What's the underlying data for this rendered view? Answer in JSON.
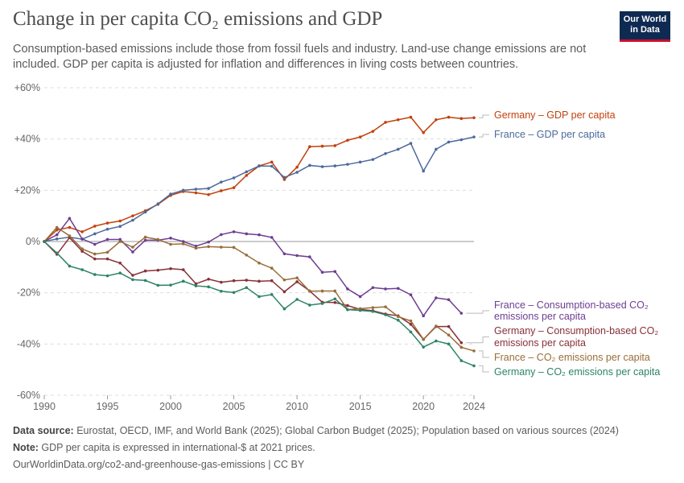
{
  "header": {
    "title": "Change in per capita CO₂ emissions and GDP",
    "subtitle": "Consumption-based emissions include those from fossil fuels and industry. Land-use change emissions are not included. GDP per capita is adjusted for inflation and differences in living costs between countries.",
    "logo": "Our World in Data"
  },
  "footer": {
    "source_label": "Data source:",
    "source": " Eurostat, OECD, IMF, and World Bank (2025); Global Carbon Budget (2025); Population based on various sources (2024)",
    "note_label": "Note:",
    "note": " GDP per capita is expressed in international-$ at 2021 prices.",
    "url": "OurWorldinData.org/co2-and-greenhouse-gas-emissions | CC BY"
  },
  "chart_data": {
    "type": "line",
    "title": "Change in per capita CO₂ emissions and GDP",
    "xlim": [
      1990,
      2024
    ],
    "ylim": [
      -60,
      60
    ],
    "x_ticks": [
      "1990",
      "1995",
      "2000",
      "2005",
      "2010",
      "2015",
      "2020",
      "2024"
    ],
    "y_ticks": [
      "+60%",
      "+40%",
      "+20%",
      "0%",
      "-20%",
      "-40%",
      "-60%"
    ],
    "grid": "horizontal dashed",
    "legend": "right, inline labels",
    "series": [
      {
        "name": "Germany – GDP per capita",
        "color": "#c2410c",
        "start": 1990,
        "values": [
          0,
          4.5,
          5.5,
          3.8,
          6,
          7.2,
          8,
          10,
          12,
          14.5,
          18,
          19.5,
          19,
          18.3,
          19.8,
          21,
          25.8,
          29.5,
          31,
          24.2,
          29,
          37,
          37.2,
          37.4,
          39.5,
          40.8,
          43,
          46.5,
          47.5,
          48.5,
          42.5,
          47.5,
          48.5,
          48,
          48.3
        ]
      },
      {
        "name": "France – GDP per capita",
        "color": "#4c6a9c",
        "start": 1990,
        "values": [
          0,
          1,
          1.7,
          0.9,
          3,
          4.8,
          5.9,
          8.3,
          11.5,
          14.7,
          18.5,
          20,
          20.4,
          20.7,
          23.2,
          24.8,
          27.2,
          29.5,
          29.4,
          25,
          27,
          29.7,
          29.2,
          29.5,
          30.1,
          31,
          32,
          34.3,
          36,
          38.3,
          27.5,
          36,
          38.8,
          39.7,
          40.8
        ]
      },
      {
        "name": "France – Consumption-based CO₂ emissions per capita",
        "color": "#6d3e91",
        "start": 1990,
        "values": [
          0,
          2.6,
          9,
          1,
          -1.1,
          0.8,
          0.8,
          -4.1,
          0.5,
          0.5,
          1.3,
          0,
          -1.8,
          -0.2,
          2.7,
          3.8,
          3,
          2.6,
          1.6,
          -4.8,
          -5.5,
          -6,
          -12,
          -11.7,
          -18.5,
          -21.5,
          -18,
          -18.5,
          -18.3,
          -20.8,
          -29,
          -22,
          -22.7,
          -28
        ]
      },
      {
        "name": "Germany – Consumption-based CO₂ emissions per capita",
        "color": "#883039",
        "start": 1990,
        "values": [
          0,
          -5,
          1.5,
          -3.8,
          -6.8,
          -6.8,
          -8.4,
          -13.2,
          -11.5,
          -11.2,
          -10.6,
          -11,
          -16.5,
          -14.7,
          -15.9,
          -15.3,
          -15.1,
          -15.5,
          -15.3,
          -19.6,
          -15.7,
          -19.3,
          -23.7,
          -23.8,
          -25,
          -26.5,
          -27,
          -28.3,
          -29,
          -32.3,
          -38.2,
          -33.2,
          -33.2,
          -39.5
        ]
      },
      {
        "name": "France – CO₂ emissions per capita",
        "color": "#996d39",
        "start": 1990,
        "values": [
          0,
          5.5,
          2.2,
          -2.9,
          -4.9,
          -4.2,
          0,
          -2.2,
          1.7,
          0.8,
          -1.1,
          -0.9,
          -2.6,
          -2,
          -2.2,
          -2.3,
          -5.3,
          -8.4,
          -10.4,
          -15,
          -14.2,
          -19.4,
          -19.3,
          -19.3,
          -26.6,
          -26.2,
          -25.8,
          -25.5,
          -29.3,
          -31,
          -38.2,
          -33,
          -36.5,
          -41.3,
          -42.7
        ]
      },
      {
        "name": "Germany – CO₂ emissions per capita",
        "color": "#2c8465",
        "start": 1990,
        "values": [
          0,
          -4.5,
          -9.6,
          -11,
          -12.9,
          -13.4,
          -12.3,
          -14.9,
          -15.2,
          -17.1,
          -17,
          -15.5,
          -17.3,
          -17.7,
          -19.4,
          -19.9,
          -18,
          -21.5,
          -20.7,
          -26.3,
          -22.6,
          -24.8,
          -24.2,
          -22.4,
          -26.6,
          -26.9,
          -27.3,
          -28.6,
          -30.7,
          -35.3,
          -41.2,
          -38.8,
          -40,
          -46.5,
          -48.5
        ]
      }
    ]
  }
}
